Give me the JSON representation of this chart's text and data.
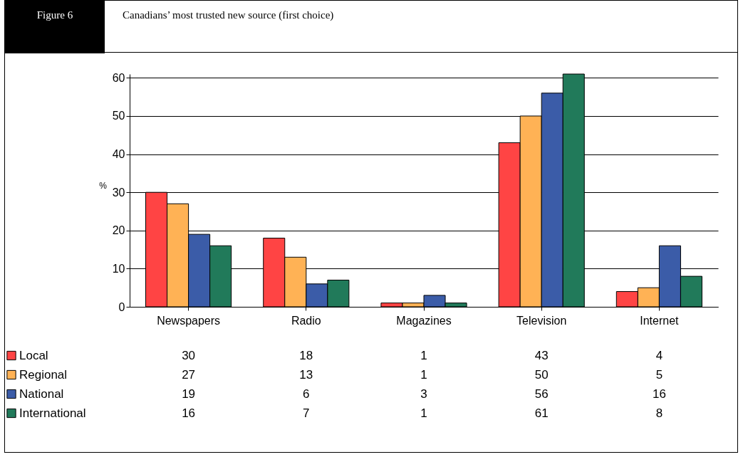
{
  "chart_data": {
    "type": "bar",
    "title": "Canadians’ most trusted new source (first choice)",
    "annotations": [
      "Figure 6"
    ],
    "ylabel": "%",
    "categories": [
      "Newspapers",
      "Radio",
      "Magazines",
      "Television",
      "Internet"
    ],
    "series": [
      {
        "name": "Local",
        "color": "#ff4444",
        "values": [
          30,
          18,
          1,
          43,
          4
        ]
      },
      {
        "name": "Regional",
        "color": "#ffb255",
        "values": [
          27,
          13,
          1,
          50,
          5
        ]
      },
      {
        "name": "National",
        "color": "#3b5ca8",
        "values": [
          19,
          6,
          3,
          56,
          16
        ]
      },
      {
        "name": "International",
        "color": "#217a5a",
        "values": [
          16,
          7,
          1,
          61,
          8
        ]
      }
    ],
    "ylim": [
      0,
      61
    ],
    "yticks": [
      0,
      10,
      20,
      30,
      40,
      50,
      60
    ],
    "grid": "y",
    "legend": "bottom left",
    "data_labels": true
  }
}
